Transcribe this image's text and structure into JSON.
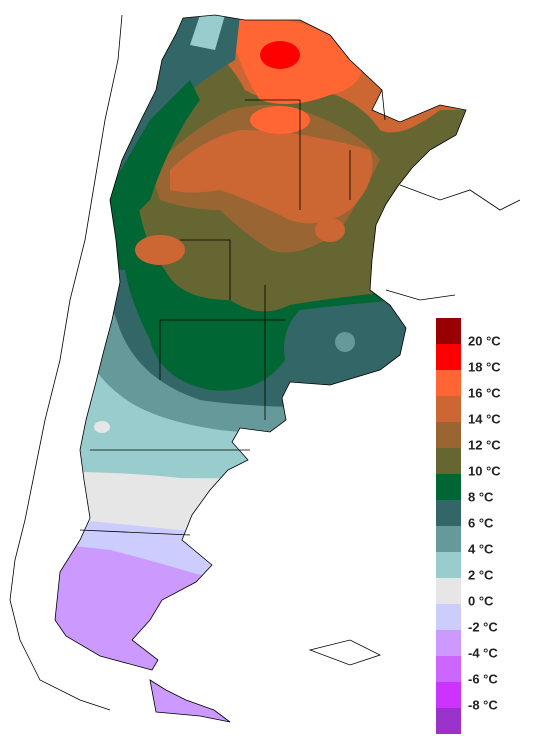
{
  "legend": {
    "colors": [
      "#990000",
      "#ff0000",
      "#ff6633",
      "#cc6633",
      "#996633",
      "#666633",
      "#006633",
      "#336666",
      "#669999",
      "#99cccc",
      "#e6e6e6",
      "#ccccff",
      "#cc99ff",
      "#cc66ff",
      "#cc33ff",
      "#9933cc"
    ],
    "labels": [
      "20 °C",
      "18 °C",
      "16 °C",
      "14 °C",
      "12 °C",
      "10 °C",
      "8 °C",
      "6 °C",
      "4 °C",
      "2 °C",
      "0 °C",
      "-2 °C",
      "-4 °C",
      "-6 °C",
      "-8 °C"
    ]
  }
}
